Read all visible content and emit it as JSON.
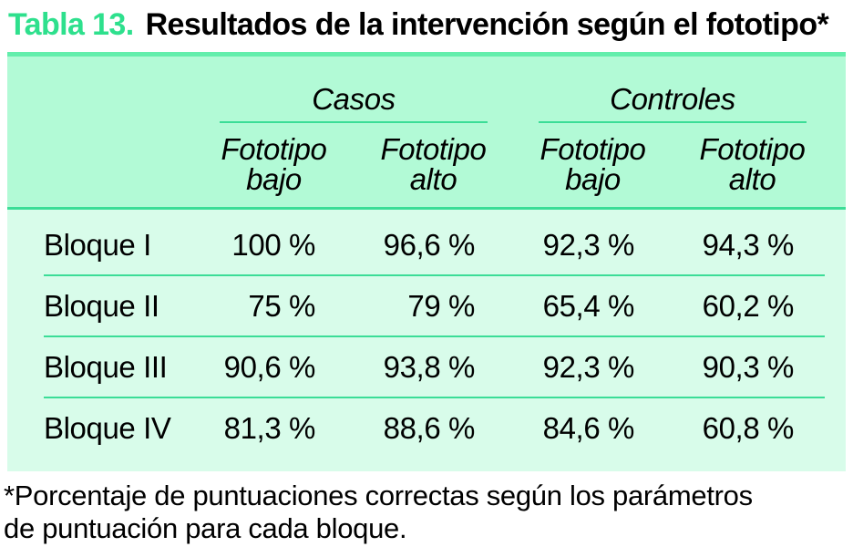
{
  "title": {
    "number": "Tabla 13.",
    "text": "Resultados de la intervención según el fototipo*"
  },
  "colors": {
    "accent_green": "#2ee08d",
    "band_green": "#63eeac",
    "line_green": "#3bdd97",
    "header_bg": "#b2fad6",
    "body_bg": "#d8fcea",
    "text": "#000000"
  },
  "table": {
    "groups": [
      {
        "label": "Casos"
      },
      {
        "label": "Controles"
      }
    ],
    "columns": [
      {
        "line1": "Fototipo",
        "line2": "bajo"
      },
      {
        "line1": "Fototipo",
        "line2": "alto"
      },
      {
        "line1": "Fototipo",
        "line2": "bajo"
      },
      {
        "line1": "Fototipo",
        "line2": "alto"
      }
    ],
    "rows": [
      {
        "label": "Bloque I",
        "values": [
          "100 %",
          "96,6 %",
          "92,3 %",
          "94,3 %"
        ]
      },
      {
        "label": "Bloque II",
        "values": [
          "75 %",
          "79 %",
          "65,4 %",
          "60,2 %"
        ]
      },
      {
        "label": "Bloque III",
        "values": [
          "90,6 %",
          "93,8 %",
          "92,3 %",
          "90,3 %"
        ]
      },
      {
        "label": "Bloque IV",
        "values": [
          "81,3 %",
          "88,6 %",
          "84,6 %",
          "60,8 %"
        ]
      }
    ]
  },
  "footnote": {
    "line1": "*Porcentaje de puntuaciones correctas según los parámetros",
    "line2": "de puntuación para cada bloque."
  }
}
